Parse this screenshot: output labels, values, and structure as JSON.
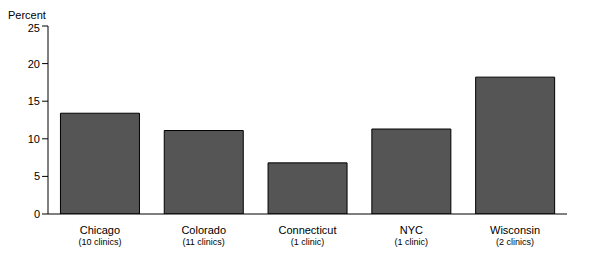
{
  "chart_data": {
    "type": "bar",
    "y_label": "Percent",
    "categories": [
      "Chicago\n(10 clinics)",
      "Colorado\n(11 clinics)",
      "Connecticut\n(1 clinic)",
      "NYC\n(1 clinic)",
      "Wisconsin\n(2 clinics)"
    ],
    "values": [
      13.4,
      11.1,
      6.8,
      11.3,
      18.2
    ],
    "color": "#555555",
    "ylim": [
      0,
      25
    ],
    "yticks": [
      0,
      5,
      10,
      15,
      20,
      25
    ],
    "grid": false
  }
}
